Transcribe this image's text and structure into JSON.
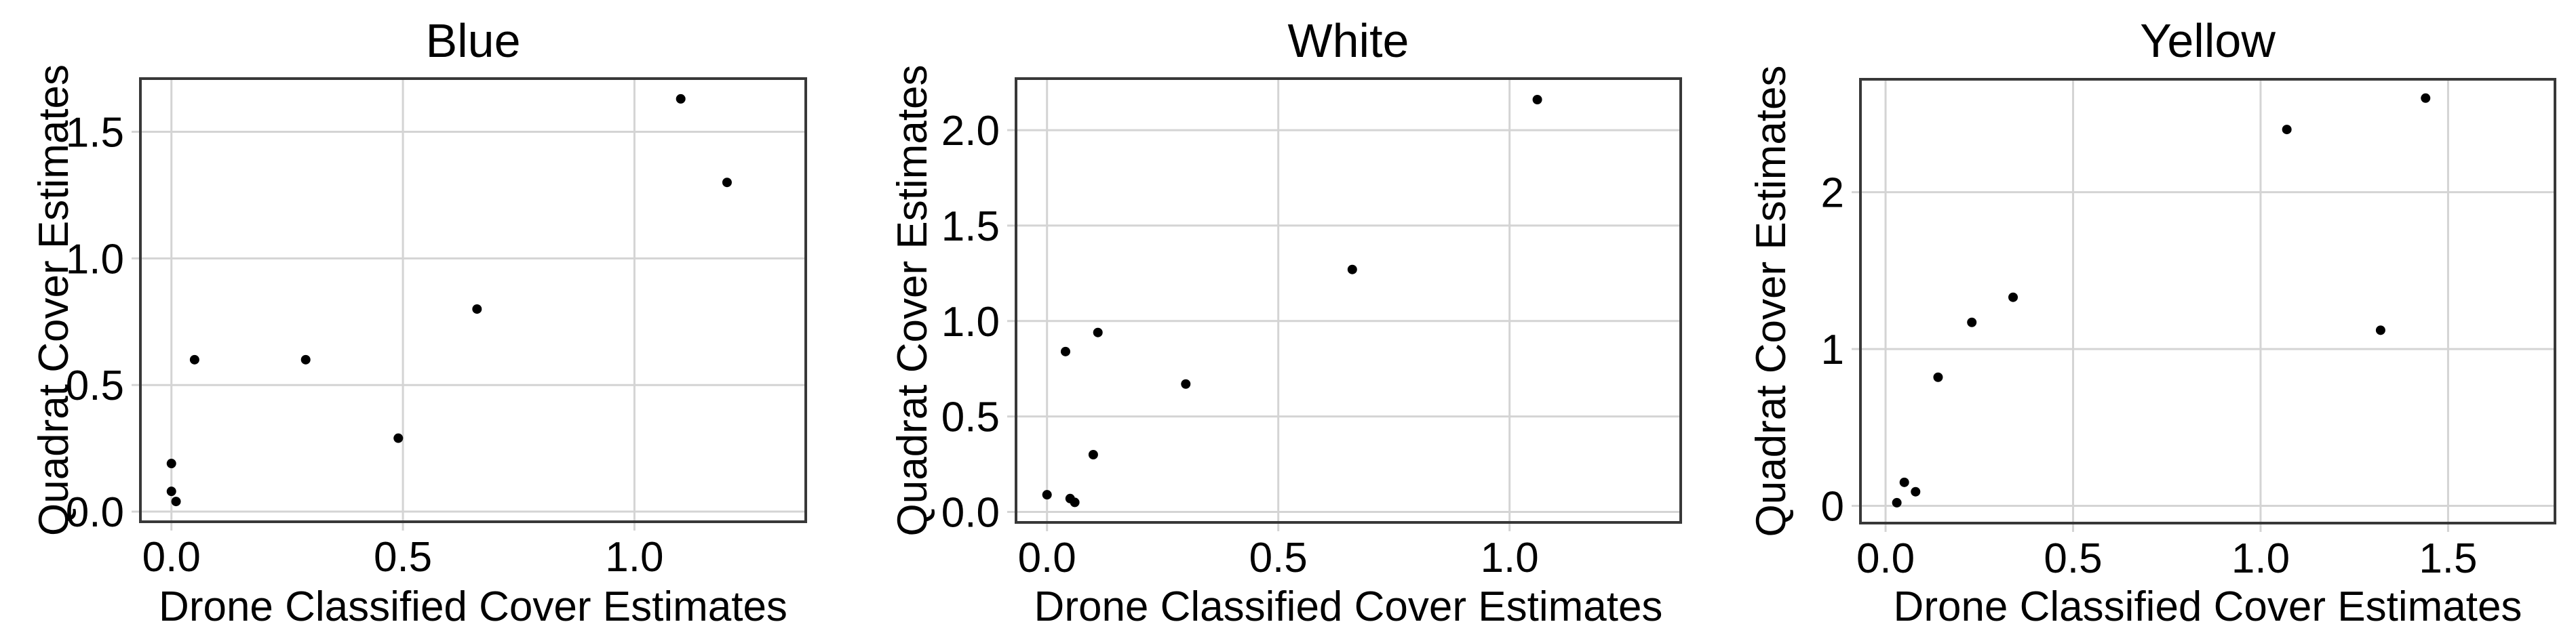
{
  "figure": {
    "xlabel": "Drone Classified Cover Estimates",
    "ylabel": "Quadrat Cover Estimates"
  },
  "chart_data": [
    {
      "type": "scatter",
      "title": "Blue",
      "xlabel": "Drone Classified Cover Estimates",
      "ylabel": "Quadrat Cover Estimates",
      "points": [
        [
          0.0,
          0.19
        ],
        [
          0.0,
          0.08
        ],
        [
          0.01,
          0.04
        ],
        [
          0.05,
          0.6
        ],
        [
          0.29,
          0.6
        ],
        [
          0.49,
          0.29
        ],
        [
          0.66,
          0.8
        ],
        [
          1.1,
          1.63
        ],
        [
          1.2,
          1.3
        ]
      ],
      "xlim": [
        -0.067,
        1.37
      ],
      "ylim": [
        -0.04,
        1.71
      ],
      "x_ticks": [
        0.0,
        0.5,
        1.0
      ],
      "x_tick_labels": [
        "0.0",
        "0.5",
        "1.0"
      ],
      "y_ticks": [
        0.0,
        0.5,
        1.0,
        1.5
      ],
      "y_tick_labels": [
        "0.0",
        "0.5",
        "1.0",
        "1.5"
      ],
      "grid": true,
      "legend": false
    },
    {
      "type": "scatter",
      "title": "White",
      "xlabel": "Drone Classified Cover Estimates",
      "ylabel": "Quadrat Cover Estimates",
      "points": [
        [
          0.0,
          0.09
        ],
        [
          0.04,
          0.84
        ],
        [
          0.05,
          0.07
        ],
        [
          0.06,
          0.05
        ],
        [
          0.1,
          0.3
        ],
        [
          0.11,
          0.94
        ],
        [
          0.3,
          0.67
        ],
        [
          0.66,
          1.27
        ],
        [
          1.06,
          2.16
        ]
      ],
      "xlim": [
        -0.067,
        1.37
      ],
      "ylim": [
        -0.055,
        2.27
      ],
      "x_ticks": [
        0.0,
        0.5,
        1.0
      ],
      "x_tick_labels": [
        "0.0",
        "0.5",
        "1.0"
      ],
      "y_ticks": [
        0.0,
        0.5,
        1.0,
        1.5,
        2.0
      ],
      "y_tick_labels": [
        "0.0",
        "0.5",
        "1.0",
        "1.5",
        "2.0"
      ],
      "grid": true,
      "legend": false
    },
    {
      "type": "scatter",
      "title": "Yellow",
      "xlabel": "Drone Classified Cover Estimates",
      "ylabel": "Quadrat Cover Estimates",
      "points": [
        [
          0.03,
          0.02
        ],
        [
          0.05,
          0.15
        ],
        [
          0.08,
          0.09
        ],
        [
          0.14,
          0.82
        ],
        [
          0.23,
          1.17
        ],
        [
          0.34,
          1.33
        ],
        [
          1.07,
          2.4
        ],
        [
          1.32,
          1.12
        ],
        [
          1.44,
          2.6
        ]
      ],
      "xlim": [
        -0.067,
        1.785
      ],
      "ylim": [
        -0.11,
        2.72
      ],
      "x_ticks": [
        0.0,
        0.5,
        1.0,
        1.5
      ],
      "x_tick_labels": [
        "0.0",
        "0.5",
        "1.0",
        "1.5"
      ],
      "y_ticks": [
        0,
        1,
        2
      ],
      "y_tick_labels": [
        "0",
        "1",
        "2"
      ],
      "grid": true,
      "legend": false
    }
  ],
  "style": {
    "background": "#ffffff",
    "grid_color": "#d4d4d4",
    "frame_color": "#383838",
    "tick_color": "#d4d4d4",
    "point_color": "#000000",
    "text_color": "#000000"
  }
}
